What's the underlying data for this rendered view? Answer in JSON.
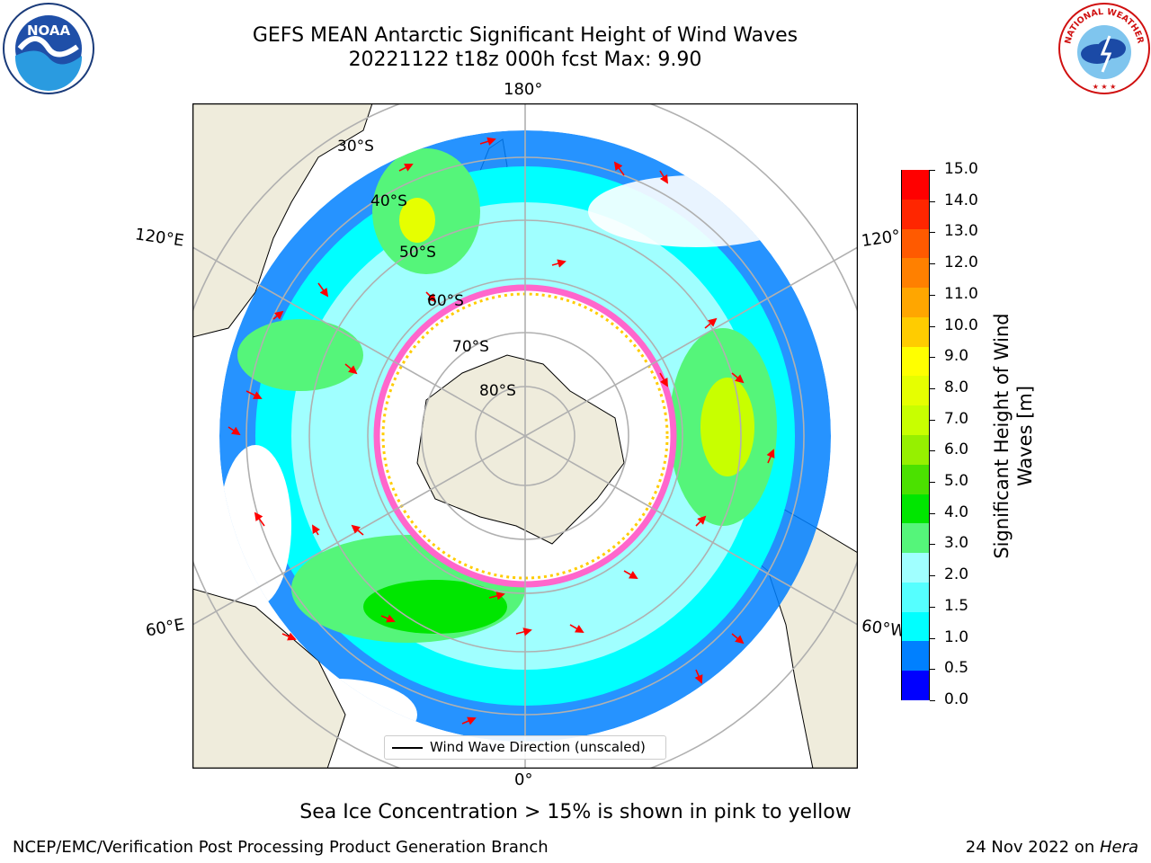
{
  "header": {
    "title_line1": "GEFS MEAN Antarctic Significant Height of Wind Waves",
    "title_line2": "20221122 t18z 000h fcst   Max: 9.90"
  },
  "logos": {
    "left": "NOAA",
    "right": "NATIONAL WEATHER SERVICE"
  },
  "map": {
    "projection": "south-polar-stereographic",
    "longitude_labels": {
      "top": "180°",
      "bottom": "0°",
      "left_upper": "120°E",
      "left_lower": "60°E",
      "right_upper": "120°",
      "right_lower": "60°W"
    },
    "latitude_labels": [
      "30°S",
      "40°S",
      "50°S",
      "60°S",
      "70°S",
      "80°S"
    ],
    "legend": {
      "label": "Wind Wave Direction (unscaled)"
    },
    "colors": {
      "land": "#efecdc",
      "ocean_no_data": "#ffffff",
      "arrows": "#ff0000",
      "grid": "#b0b0b0"
    }
  },
  "colorbar": {
    "label_line1": "Significant Height of Wind",
    "label_line2": "Waves [m]",
    "ticks": [
      "15.0",
      "14.0",
      "13.0",
      "12.0",
      "11.0",
      "10.0",
      "9.0",
      "8.0",
      "7.0",
      "6.0",
      "5.0",
      "4.0",
      "3.0",
      "2.0",
      "1.5",
      "1.0",
      "0.5",
      "0.0"
    ],
    "colors_top_to_bottom": [
      "#ff0000",
      "#ff2600",
      "#ff5a00",
      "#ff8000",
      "#ffa600",
      "#ffcc00",
      "#ffff00",
      "#e6ff00",
      "#c8ff00",
      "#96f000",
      "#4be100",
      "#00e600",
      "#55f57a",
      "#a0ffff",
      "#55ffff",
      "#00ffff",
      "#0080ff",
      "#0000ff"
    ]
  },
  "footer": {
    "note": "Sea Ice Concentration > 15% is shown in pink to yellow",
    "credit": "NCEP/EMC/Verification Post Processing Product Generation Branch",
    "date_prefix": "24 Nov 2022 on ",
    "date_system": "Hera"
  }
}
